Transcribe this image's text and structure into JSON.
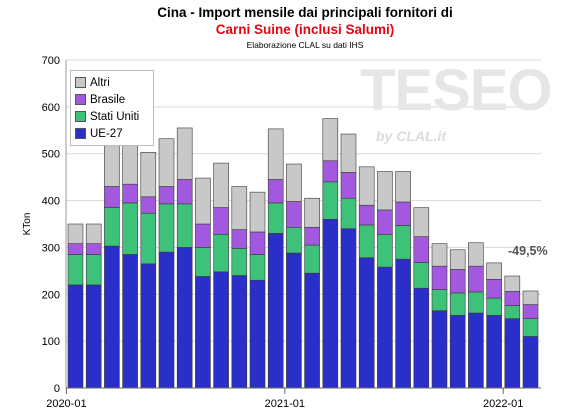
{
  "title_line1": "Cina - Import mensile dai principali fornitori di",
  "title_line2": "Carni Suine (inclusi Salumi)",
  "subtitle": "Elaborazione CLAL su dati IHS",
  "watermark": "TESEO",
  "watermark_sub": "by CLAL.it",
  "annotation": "-49,5%",
  "colors": {
    "Altri": "#c8c8c8",
    "Brasile": "#a259e0",
    "Stati Uniti": "#3ec27a",
    "UE-27": "#2b2fc9",
    "grid": "#d9d9d9",
    "title2": "#e30613"
  },
  "chart_data": {
    "type": "bar",
    "stacked": true,
    "ylabel": "KTon",
    "ylim": [
      0,
      700
    ],
    "yticks": [
      0,
      100,
      200,
      300,
      400,
      500,
      600,
      700
    ],
    "x_tick_labels": [
      "2020-01",
      "2021-01",
      "2022-01"
    ],
    "x_tick_indices": [
      0,
      12,
      24
    ],
    "legend_position": "top-left",
    "categories": [
      "2020-01",
      "2020-02",
      "2020-03",
      "2020-04",
      "2020-05",
      "2020-06",
      "2020-07",
      "2020-08",
      "2020-09",
      "2020-10",
      "2020-11",
      "2020-12",
      "2021-01",
      "2021-02",
      "2021-03",
      "2021-04",
      "2021-05",
      "2021-06",
      "2021-07",
      "2021-08",
      "2021-09",
      "2021-10",
      "2021-11",
      "2021-12",
      "2022-01",
      "2022-02"
    ],
    "series": [
      {
        "name": "UE-27",
        "values": [
          220,
          220,
          303,
          285,
          265,
          290,
          300,
          238,
          248,
          240,
          230,
          330,
          288,
          245,
          360,
          340,
          278,
          258,
          275,
          213,
          165,
          155,
          160,
          155,
          148,
          110
        ]
      },
      {
        "name": "Stati Uniti",
        "values": [
          65,
          65,
          82,
          110,
          108,
          103,
          93,
          62,
          80,
          58,
          55,
          65,
          55,
          60,
          80,
          65,
          70,
          70,
          72,
          55,
          45,
          48,
          45,
          37,
          28,
          38
        ]
      },
      {
        "name": "Brasile",
        "values": [
          23,
          23,
          45,
          40,
          35,
          37,
          52,
          50,
          57,
          40,
          48,
          50,
          55,
          38,
          45,
          55,
          42,
          52,
          50,
          55,
          50,
          50,
          55,
          40,
          30,
          30
        ]
      },
      {
        "name": "Altri",
        "values": [
          42,
          42,
          87,
          87,
          95,
          102,
          110,
          98,
          95,
          92,
          85,
          108,
          80,
          62,
          90,
          82,
          82,
          82,
          65,
          62,
          48,
          42,
          50,
          35,
          33,
          29
        ]
      }
    ]
  }
}
